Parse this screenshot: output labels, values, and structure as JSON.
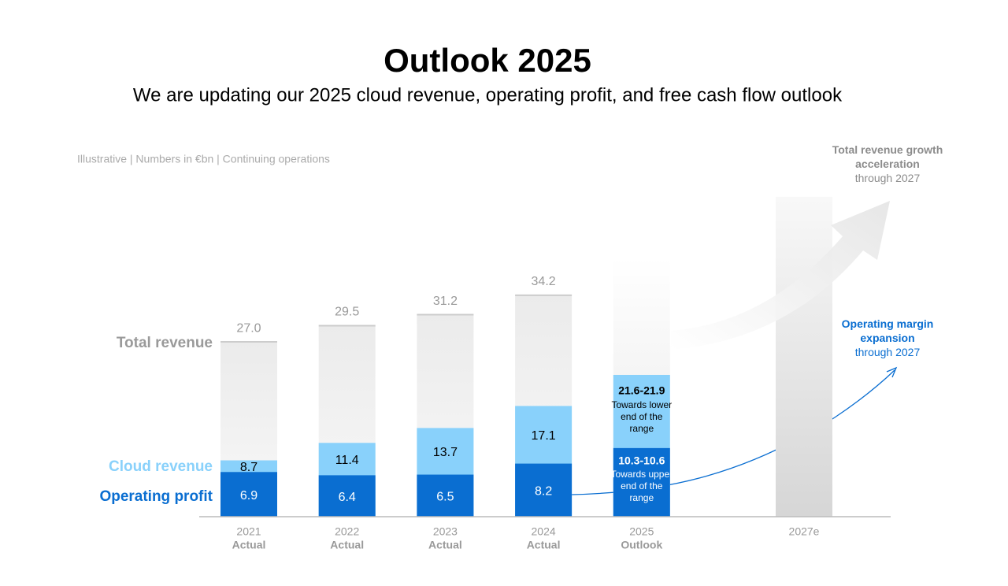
{
  "chart_data": {
    "type": "bar",
    "title": "Outlook 2025",
    "subtitle": "We are updating our 2025 cloud revenue, operating profit, and free cash flow outlook",
    "note": "Illustrative | Numbers in €bn | Continuing operations",
    "categories": [
      "2021",
      "2022",
      "2023",
      "2024",
      "2025",
      "2027e"
    ],
    "category_notes": [
      "Actual",
      "Actual",
      "Actual",
      "Actual",
      "Outlook",
      null
    ],
    "ylim": [
      0,
      50
    ],
    "series": [
      {
        "name": "Total revenue",
        "color": "#9a9a9a",
        "values": [
          27.0,
          29.5,
          31.2,
          34.2,
          40,
          49.4
        ],
        "value_labels": [
          "27.0",
          "29.5",
          "31.2",
          "34.2",
          null,
          null
        ]
      },
      {
        "name": "Cloud revenue",
        "color": "#89d1fb",
        "values": [
          8.7,
          11.4,
          13.7,
          17.1,
          21.9,
          null
        ],
        "value_labels": [
          "8.7",
          "11.4",
          "13.7",
          "17.1",
          "21.6-21.9",
          null
        ],
        "notes": [
          null,
          null,
          null,
          null,
          "Towards lower end of the range",
          null
        ]
      },
      {
        "name": "Operating profit",
        "color": "#0a6ed1",
        "values": [
          6.9,
          6.4,
          6.5,
          8.2,
          10.6,
          null
        ],
        "value_labels": [
          "6.9",
          "6.4",
          "6.5",
          "8.2",
          "10.3-10.6",
          null
        ],
        "notes": [
          null,
          null,
          null,
          null,
          "Towards upper end of the range",
          null
        ]
      }
    ],
    "annotations": [
      {
        "title": "Total revenue growth acceleration",
        "text": "through 2027",
        "color": "#8c8c8c"
      },
      {
        "title": "Operating margin expansion",
        "text": "through 2027",
        "color": "#0a6ed1"
      }
    ]
  }
}
